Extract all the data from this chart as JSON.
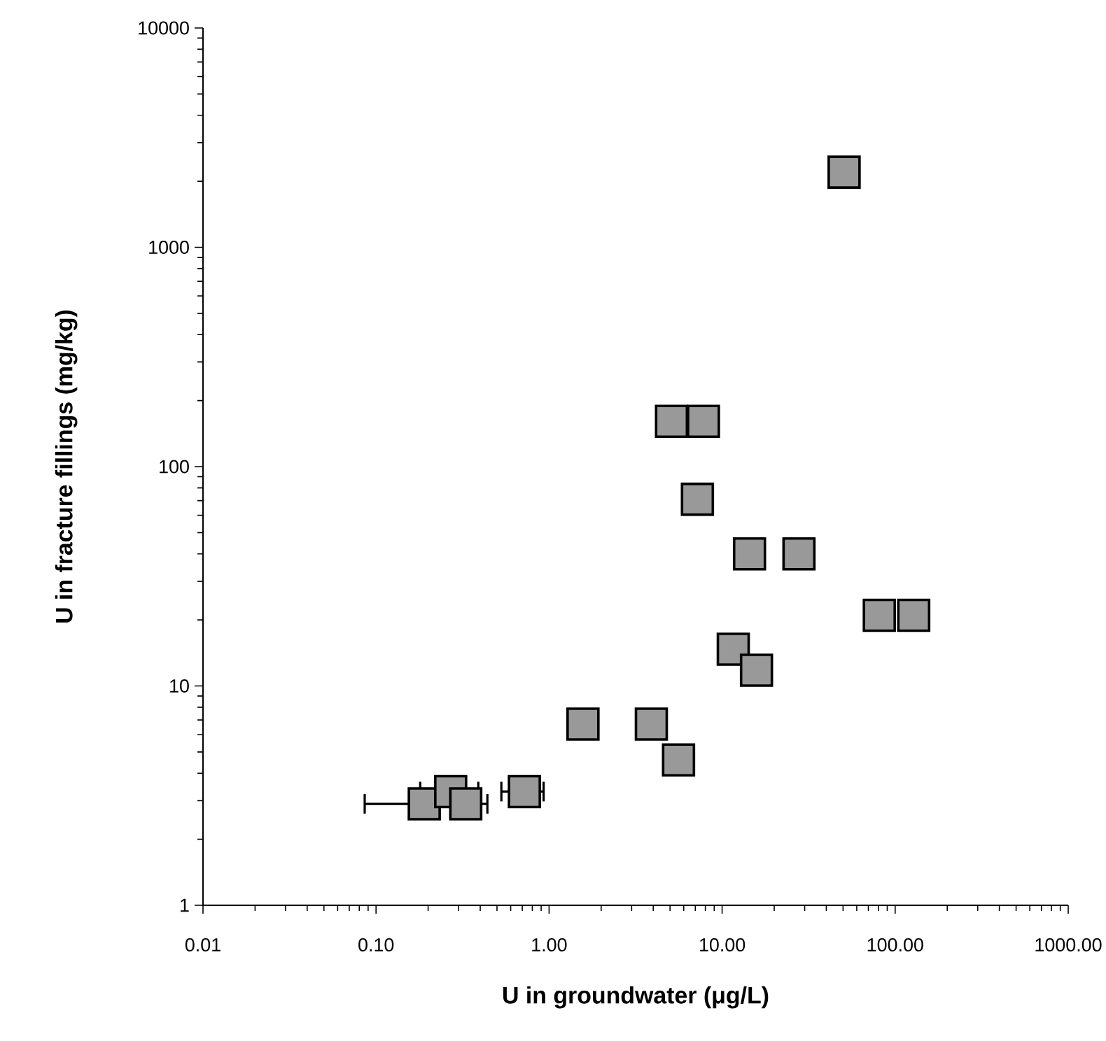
{
  "chart_data": {
    "type": "scatter",
    "xlabel": "U in groundwater (μg/L)",
    "ylabel": "U in fracture fillings (mg/kg)",
    "log": "xy",
    "grid": false,
    "marker": "square",
    "xlim": [
      0.01,
      1000
    ],
    "ylim": [
      1,
      10000
    ],
    "xticks": [
      {
        "value": 0.01,
        "label": "0.01"
      },
      {
        "value": 0.1,
        "label": "0.10"
      },
      {
        "value": 1,
        "label": "1.00"
      },
      {
        "value": 10,
        "label": "10.00"
      },
      {
        "value": 100,
        "label": "100.00"
      },
      {
        "value": 1000,
        "label": "1000.00"
      }
    ],
    "yticks": [
      1,
      10,
      100,
      1000,
      10000
    ],
    "series": [
      {
        "color": "#999999",
        "x": [
          0.19,
          0.27,
          0.33,
          0.72,
          1.57,
          3.9,
          5.6,
          5.1,
          7.8,
          7.2,
          14.4,
          27.8,
          81,
          128,
          11.6,
          15.8,
          50.7
        ],
        "values": [
          2.9,
          3.3,
          2.9,
          3.3,
          6.7,
          6.7,
          4.6,
          161,
          161,
          71,
          40,
          40,
          21,
          21,
          14.7,
          11.8,
          2200
        ],
        "xerrors": [
          [
            0.086,
            0.19
          ],
          [
            0.18,
            0.39
          ],
          [
            0.22,
            0.44
          ],
          [
            0.53,
            0.93
          ],
          null,
          null,
          null,
          null,
          null,
          null,
          null,
          null,
          null,
          null,
          null,
          null,
          null
        ]
      }
    ]
  }
}
